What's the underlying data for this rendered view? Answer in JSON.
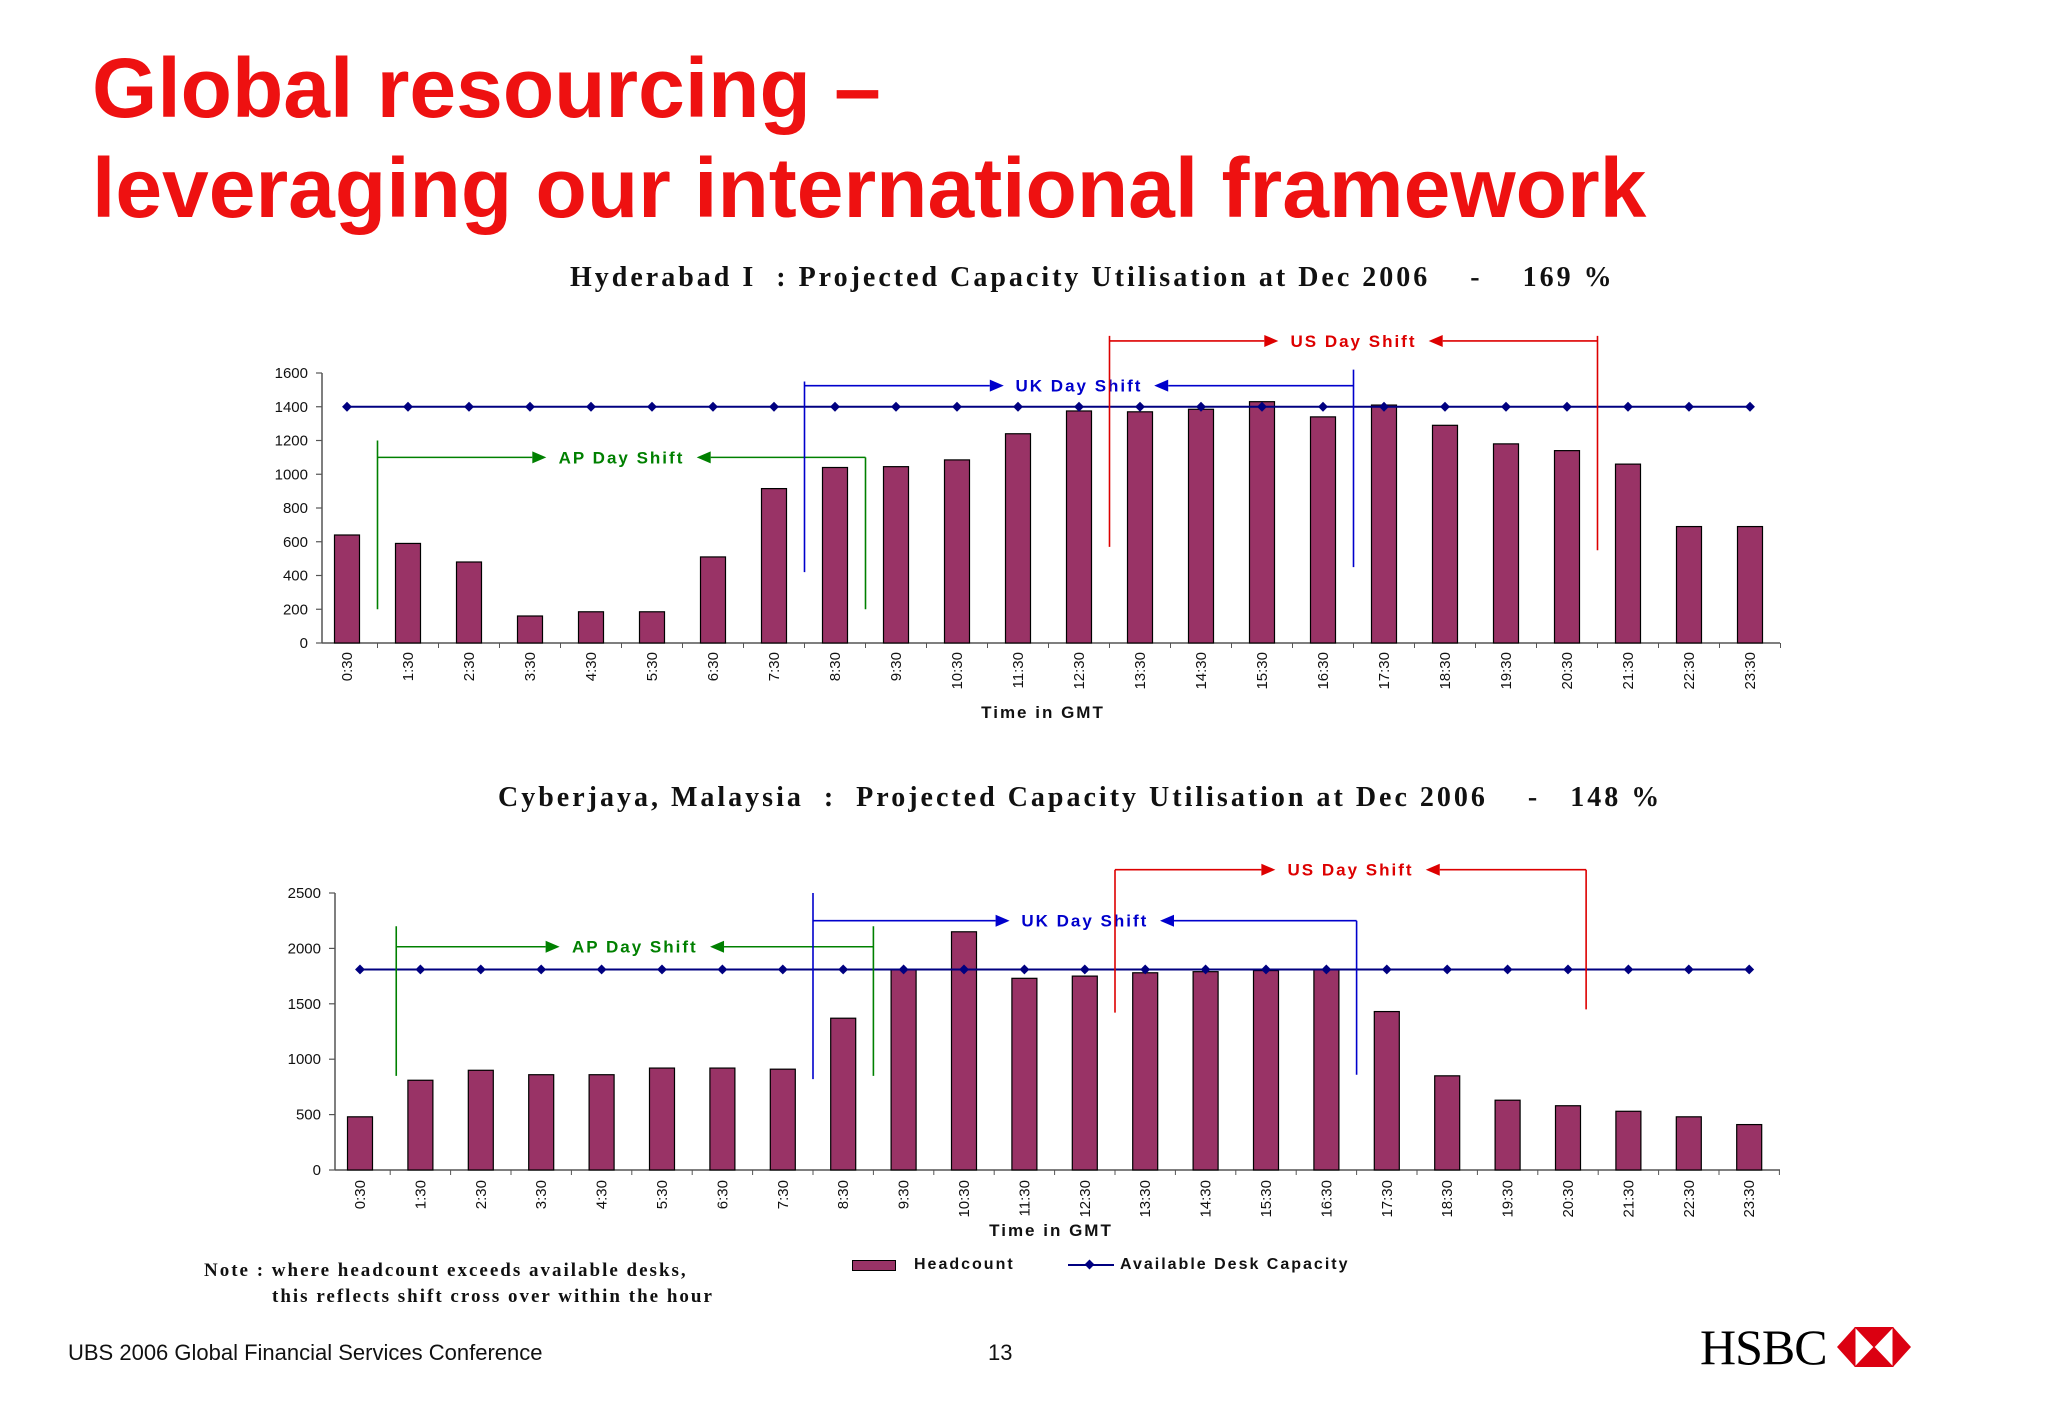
{
  "slide": {
    "title_line1": "Global resourcing –",
    "title_line2": "leveraging our international framework",
    "note_line1": "Note : where headcount exceeds available desks,",
    "note_line2": "this reflects shift cross over within the hour",
    "legend": {
      "headcount": "Headcount",
      "capacity": "Available Desk Capacity"
    },
    "footer": {
      "conference": "UBS 2006 Global Financial Services Conference",
      "page_number": "13"
    },
    "logo_text": "HSBC"
  },
  "colors": {
    "title": "#ee1111",
    "bar": "#993366",
    "capacity_line": "#000080",
    "ap_shift": "#008000",
    "uk_shift": "#0000cc",
    "us_shift": "#dd0000"
  },
  "chart_data": [
    {
      "type": "bar",
      "title": "Hyderabad I  : Projected Capacity Utilisation at Dec 2006    -    169 %",
      "xlabel": "Time in GMT",
      "ylabel": "",
      "ylim": [
        0,
        1600
      ],
      "yticks": [
        0,
        200,
        400,
        600,
        800,
        1000,
        1200,
        1400,
        1600
      ],
      "categories": [
        "0:30",
        "1:30",
        "2:30",
        "3:30",
        "4:30",
        "5:30",
        "6:30",
        "7:30",
        "8:30",
        "9:30",
        "10:30",
        "11:30",
        "12:30",
        "13:30",
        "14:30",
        "15:30",
        "16:30",
        "17:30",
        "18:30",
        "19:30",
        "20:30",
        "21:30",
        "22:30",
        "23:30"
      ],
      "series": [
        {
          "name": "Headcount",
          "type": "bar",
          "values": [
            640,
            590,
            480,
            160,
            185,
            185,
            510,
            915,
            1040,
            1045,
            1085,
            1240,
            1375,
            1370,
            1385,
            1430,
            1340,
            1410,
            1290,
            1180,
            1140,
            1060,
            690,
            690
          ]
        },
        {
          "name": "Available Desk Capacity",
          "type": "line",
          "values": [
            1400,
            1400,
            1400,
            1400,
            1400,
            1400,
            1400,
            1400,
            1400,
            1400,
            1400,
            1400,
            1400,
            1400,
            1400,
            1400,
            1400,
            1400,
            1400,
            1400,
            1400,
            1400,
            1400,
            1400
          ]
        }
      ],
      "annotations": [
        {
          "label": "AP Day Shift",
          "color": "#008000",
          "start_index": 0.5,
          "end_index": 8.5,
          "value_level": 1100,
          "start_value_range": [
            200,
            1200
          ],
          "end_value_range": [
            200,
            1100
          ]
        },
        {
          "label": "UK Day Shift",
          "color": "#0000cc",
          "start_index": 7.5,
          "end_index": 16.5,
          "value_level": 1525,
          "start_value_range": [
            420,
            1550
          ],
          "end_value_range": [
            450,
            1620
          ]
        },
        {
          "label": "US Day Shift",
          "color": "#dd0000",
          "start_index": 12.5,
          "end_index": 20.5,
          "value_level": 1790,
          "start_value_range": [
            570,
            1820
          ],
          "end_value_range": [
            550,
            1820
          ]
        }
      ]
    },
    {
      "type": "bar",
      "title": "Cyberjaya, Malaysia  :  Projected Capacity Utilisation at Dec 2006    -   148 %",
      "xlabel": "Time in GMT",
      "ylabel": "",
      "ylim": [
        0,
        2500
      ],
      "yticks": [
        0,
        500,
        1000,
        1500,
        2000,
        2500
      ],
      "categories": [
        "0:30",
        "1:30",
        "2:30",
        "3:30",
        "4:30",
        "5:30",
        "6:30",
        "7:30",
        "8:30",
        "9:30",
        "10:30",
        "11:30",
        "12:30",
        "13:30",
        "14:30",
        "15:30",
        "16:30",
        "17:30",
        "18:30",
        "19:30",
        "20:30",
        "21:30",
        "22:30",
        "23:30"
      ],
      "series": [
        {
          "name": "Headcount",
          "type": "bar",
          "values": [
            480,
            810,
            900,
            860,
            860,
            920,
            920,
            910,
            1370,
            1810,
            2150,
            1730,
            1750,
            1780,
            1790,
            1800,
            1810,
            1430,
            850,
            630,
            580,
            530,
            480,
            410
          ]
        },
        {
          "name": "Available Desk Capacity",
          "type": "line",
          "values": [
            1810,
            1810,
            1810,
            1810,
            1810,
            1810,
            1810,
            1810,
            1810,
            1810,
            1810,
            1810,
            1810,
            1810,
            1810,
            1810,
            1810,
            1810,
            1810,
            1810,
            1810,
            1810,
            1810,
            1810
          ]
        }
      ],
      "annotations": [
        {
          "label": "AP Day Shift",
          "color": "#008000",
          "start_index": 0.6,
          "end_index": 8.5,
          "value_level": 2015,
          "start_value_range": [
            850,
            2200
          ],
          "end_value_range": [
            850,
            2200
          ]
        },
        {
          "label": "UK Day Shift",
          "color": "#0000cc",
          "start_index": 7.5,
          "end_index": 16.5,
          "value_level": 2250,
          "start_value_range": [
            820,
            2500
          ],
          "end_value_range": [
            860,
            2250
          ]
        },
        {
          "label": "US Day Shift",
          "color": "#dd0000",
          "start_index": 12.5,
          "end_index": 20.3,
          "value_level": 2710,
          "start_value_range": [
            1420,
            2710
          ],
          "end_value_range": [
            1450,
            2710
          ]
        }
      ]
    }
  ]
}
